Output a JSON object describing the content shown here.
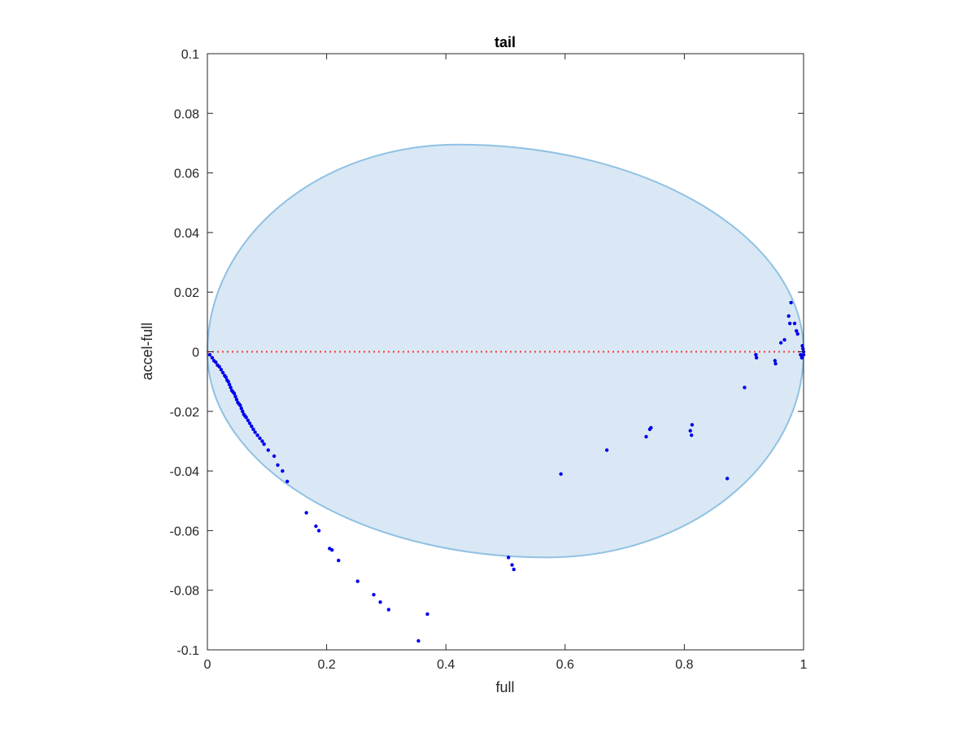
{
  "chart_data": {
    "type": "scatter",
    "title": "tail",
    "xlabel": "full",
    "ylabel": "accel-full",
    "xlim": [
      0,
      1
    ],
    "ylim": [
      -0.1,
      0.1
    ],
    "xticks": [
      "0",
      "0.2",
      "0.4",
      "0.6",
      "0.8",
      "1"
    ],
    "xtick_values": [
      0,
      0.2,
      0.4,
      0.6,
      0.8,
      1
    ],
    "yticks": [
      "0.1",
      "0.08",
      "0.06",
      "0.04",
      "0.02",
      "0",
      "-0.02",
      "-0.04",
      "-0.06",
      "-0.08",
      "-0.1"
    ],
    "ytick_values": [
      0.1,
      0.08,
      0.06,
      0.04,
      0.02,
      0,
      -0.02,
      -0.04,
      -0.06,
      -0.08,
      -0.1
    ],
    "grid": false,
    "colors": {
      "points": "#0000ee",
      "region_fill": "#d9e8f4",
      "region_edge": "#8fc1e3",
      "zero_line": "#ff3333",
      "axes": "#262626"
    },
    "reference_line": {
      "y": 0,
      "style": "dotted"
    },
    "region": {
      "shape": "ellipse",
      "center_x": 0.43,
      "center_y": 0,
      "top_y": 0.0695,
      "top_x": 0.42,
      "bottom_y": -0.069,
      "bottom_x": 0.57,
      "left_x": 0,
      "right_x": 1
    },
    "points": [
      {
        "x": 0.004,
        "y": -0.001
      },
      {
        "x": 0.008,
        "y": -0.002
      },
      {
        "x": 0.011,
        "y": -0.003
      },
      {
        "x": 0.014,
        "y": -0.0035
      },
      {
        "x": 0.017,
        "y": -0.0045
      },
      {
        "x": 0.02,
        "y": -0.005
      },
      {
        "x": 0.023,
        "y": -0.006
      },
      {
        "x": 0.026,
        "y": -0.007
      },
      {
        "x": 0.029,
        "y": -0.008
      },
      {
        "x": 0.031,
        "y": -0.0085
      },
      {
        "x": 0.033,
        "y": -0.0095
      },
      {
        "x": 0.035,
        "y": -0.01
      },
      {
        "x": 0.037,
        "y": -0.011
      },
      {
        "x": 0.039,
        "y": -0.012
      },
      {
        "x": 0.041,
        "y": -0.013
      },
      {
        "x": 0.043,
        "y": -0.0135
      },
      {
        "x": 0.045,
        "y": -0.014
      },
      {
        "x": 0.047,
        "y": -0.015
      },
      {
        "x": 0.049,
        "y": -0.016
      },
      {
        "x": 0.051,
        "y": -0.017
      },
      {
        "x": 0.053,
        "y": -0.0175
      },
      {
        "x": 0.055,
        "y": -0.018
      },
      {
        "x": 0.057,
        "y": -0.019
      },
      {
        "x": 0.059,
        "y": -0.02
      },
      {
        "x": 0.061,
        "y": -0.021
      },
      {
        "x": 0.063,
        "y": -0.0215
      },
      {
        "x": 0.065,
        "y": -0.022
      },
      {
        "x": 0.068,
        "y": -0.023
      },
      {
        "x": 0.071,
        "y": -0.024
      },
      {
        "x": 0.074,
        "y": -0.025
      },
      {
        "x": 0.077,
        "y": -0.026
      },
      {
        "x": 0.08,
        "y": -0.027
      },
      {
        "x": 0.084,
        "y": -0.028
      },
      {
        "x": 0.088,
        "y": -0.029
      },
      {
        "x": 0.092,
        "y": -0.03
      },
      {
        "x": 0.095,
        "y": -0.031
      },
      {
        "x": 0.102,
        "y": -0.033
      },
      {
        "x": 0.112,
        "y": -0.035
      },
      {
        "x": 0.118,
        "y": -0.038
      },
      {
        "x": 0.126,
        "y": -0.04
      },
      {
        "x": 0.134,
        "y": -0.0435
      },
      {
        "x": 0.166,
        "y": -0.054
      },
      {
        "x": 0.182,
        "y": -0.0585
      },
      {
        "x": 0.187,
        "y": -0.06
      },
      {
        "x": 0.205,
        "y": -0.066
      },
      {
        "x": 0.209,
        "y": -0.0665
      },
      {
        "x": 0.22,
        "y": -0.07
      },
      {
        "x": 0.252,
        "y": -0.077
      },
      {
        "x": 0.279,
        "y": -0.0815
      },
      {
        "x": 0.29,
        "y": -0.084
      },
      {
        "x": 0.304,
        "y": -0.0865
      },
      {
        "x": 0.354,
        "y": -0.097
      },
      {
        "x": 0.369,
        "y": -0.088
      },
      {
        "x": 0.505,
        "y": -0.069
      },
      {
        "x": 0.511,
        "y": -0.0715
      },
      {
        "x": 0.514,
        "y": -0.073
      },
      {
        "x": 0.593,
        "y": -0.041
      },
      {
        "x": 0.67,
        "y": -0.033
      },
      {
        "x": 0.736,
        "y": -0.0285
      },
      {
        "x": 0.742,
        "y": -0.026
      },
      {
        "x": 0.744,
        "y": -0.0255
      },
      {
        "x": 0.81,
        "y": -0.0265
      },
      {
        "x": 0.812,
        "y": -0.028
      },
      {
        "x": 0.813,
        "y": -0.0245
      },
      {
        "x": 0.872,
        "y": -0.0425
      },
      {
        "x": 0.901,
        "y": -0.012
      },
      {
        "x": 0.92,
        "y": -0.001
      },
      {
        "x": 0.921,
        "y": -0.002
      },
      {
        "x": 0.952,
        "y": -0.003
      },
      {
        "x": 0.953,
        "y": -0.004
      },
      {
        "x": 0.962,
        "y": 0.003
      },
      {
        "x": 0.968,
        "y": 0.004
      },
      {
        "x": 0.975,
        "y": 0.012
      },
      {
        "x": 0.977,
        "y": 0.0095
      },
      {
        "x": 0.979,
        "y": 0.0165
      },
      {
        "x": 0.985,
        "y": 0.0095
      },
      {
        "x": 0.988,
        "y": 0.007
      },
      {
        "x": 0.99,
        "y": 0.006
      },
      {
        "x": 0.995,
        "y": -0.001
      },
      {
        "x": 0.997,
        "y": -0.002
      },
      {
        "x": 0.998,
        "y": 0.002
      },
      {
        "x": 0.999,
        "y": 0.001
      },
      {
        "x": 1.0,
        "y": 0.0
      },
      {
        "x": 1.0,
        "y": -0.001
      }
    ]
  }
}
